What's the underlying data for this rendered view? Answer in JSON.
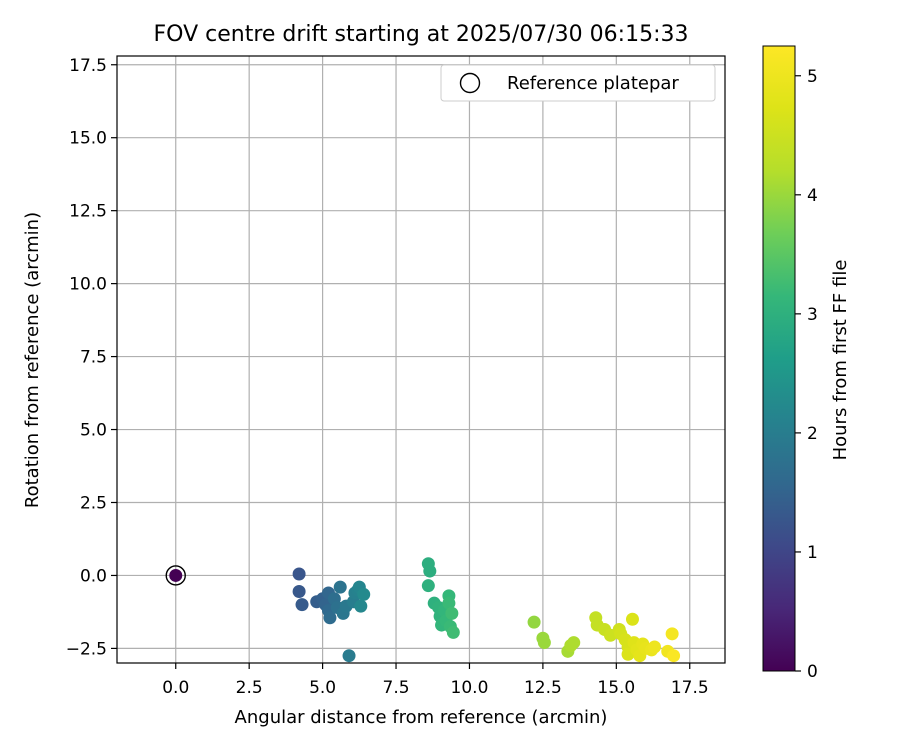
{
  "chart_data": {
    "type": "scatter",
    "title": "FOV centre drift starting at 2025/07/30 06:15:33",
    "xlabel": "Angular distance from reference (arcmin)",
    "ylabel": "Rotation from reference (arcmin)",
    "xlim": [
      -2.0,
      18.7
    ],
    "ylim": [
      -3.0,
      17.8
    ],
    "x_ticks": [
      0.0,
      2.5,
      5.0,
      7.5,
      10.0,
      12.5,
      15.0,
      17.5
    ],
    "x_tick_labels": [
      "0.0",
      "2.5",
      "5.0",
      "7.5",
      "10.0",
      "12.5",
      "15.0",
      "17.5"
    ],
    "y_ticks": [
      -2.5,
      0.0,
      2.5,
      5.0,
      7.5,
      10.0,
      12.5,
      15.0,
      17.5
    ],
    "y_tick_labels": [
      "−2.5",
      "0.0",
      "2.5",
      "5.0",
      "7.5",
      "10.0",
      "12.5",
      "15.0",
      "17.5"
    ],
    "grid": true,
    "legend": {
      "position": "top-right",
      "entries": [
        {
          "label": "Reference platepar",
          "marker": "open-circle"
        }
      ]
    },
    "colorbar": {
      "label": "Hours from first FF file",
      "range": [
        0,
        5.25
      ],
      "ticks": [
        0,
        1,
        2,
        3,
        4,
        5
      ],
      "tick_labels": [
        "0",
        "1",
        "2",
        "3",
        "4",
        "5"
      ],
      "colormap": "viridis"
    },
    "reference_point": {
      "x": 0.0,
      "y": 0.0
    },
    "series": [
      {
        "points": [
          {
            "x": 0.0,
            "y": 0.0,
            "h": 0.0
          },
          {
            "x": 4.2,
            "y": 0.05,
            "h": 1.25
          },
          {
            "x": 4.2,
            "y": -0.55,
            "h": 1.3
          },
          {
            "x": 4.3,
            "y": -1.0,
            "h": 1.35
          },
          {
            "x": 4.8,
            "y": -0.9,
            "h": 1.4
          },
          {
            "x": 5.0,
            "y": -0.8,
            "h": 1.45
          },
          {
            "x": 5.1,
            "y": -1.0,
            "h": 1.5
          },
          {
            "x": 5.2,
            "y": -0.6,
            "h": 1.55
          },
          {
            "x": 5.2,
            "y": -1.2,
            "h": 1.6
          },
          {
            "x": 5.25,
            "y": -1.45,
            "h": 1.65
          },
          {
            "x": 5.4,
            "y": -0.8,
            "h": 1.7
          },
          {
            "x": 5.5,
            "y": -1.1,
            "h": 1.75
          },
          {
            "x": 5.6,
            "y": -0.4,
            "h": 1.8
          },
          {
            "x": 5.7,
            "y": -1.3,
            "h": 1.85
          },
          {
            "x": 5.8,
            "y": -1.05,
            "h": 1.9
          },
          {
            "x": 5.9,
            "y": -2.75,
            "h": 1.95
          },
          {
            "x": 6.05,
            "y": -0.9,
            "h": 2.0
          },
          {
            "x": 6.1,
            "y": -0.6,
            "h": 2.05
          },
          {
            "x": 6.2,
            "y": -0.5,
            "h": 2.1
          },
          {
            "x": 6.25,
            "y": -0.4,
            "h": 2.15
          },
          {
            "x": 6.3,
            "y": -1.05,
            "h": 2.2
          },
          {
            "x": 6.4,
            "y": -0.65,
            "h": 2.25
          },
          {
            "x": 8.6,
            "y": 0.4,
            "h": 2.95
          },
          {
            "x": 8.65,
            "y": 0.15,
            "h": 2.95
          },
          {
            "x": 8.6,
            "y": -0.35,
            "h": 3.0
          },
          {
            "x": 8.8,
            "y": -0.95,
            "h": 3.0
          },
          {
            "x": 8.95,
            "y": -1.1,
            "h": 3.05
          },
          {
            "x": 9.0,
            "y": -1.4,
            "h": 3.05
          },
          {
            "x": 9.05,
            "y": -1.7,
            "h": 3.1
          },
          {
            "x": 9.15,
            "y": -1.2,
            "h": 3.1
          },
          {
            "x": 9.2,
            "y": -1.55,
            "h": 3.15
          },
          {
            "x": 9.3,
            "y": -0.7,
            "h": 3.15
          },
          {
            "x": 9.3,
            "y": -0.95,
            "h": 3.2
          },
          {
            "x": 9.35,
            "y": -1.75,
            "h": 3.2
          },
          {
            "x": 9.4,
            "y": -1.3,
            "h": 3.25
          },
          {
            "x": 9.45,
            "y": -1.95,
            "h": 3.25
          },
          {
            "x": 12.2,
            "y": -1.6,
            "h": 3.95
          },
          {
            "x": 12.5,
            "y": -2.15,
            "h": 4.0
          },
          {
            "x": 12.55,
            "y": -2.3,
            "h": 4.0
          },
          {
            "x": 13.35,
            "y": -2.6,
            "h": 4.1
          },
          {
            "x": 13.45,
            "y": -2.4,
            "h": 4.15
          },
          {
            "x": 13.55,
            "y": -2.3,
            "h": 4.15
          },
          {
            "x": 14.3,
            "y": -1.45,
            "h": 4.4
          },
          {
            "x": 14.35,
            "y": -1.7,
            "h": 4.4
          },
          {
            "x": 14.6,
            "y": -1.85,
            "h": 4.45
          },
          {
            "x": 14.8,
            "y": -2.05,
            "h": 4.5
          },
          {
            "x": 15.1,
            "y": -1.85,
            "h": 4.55
          },
          {
            "x": 15.15,
            "y": -2.0,
            "h": 4.6
          },
          {
            "x": 15.3,
            "y": -2.2,
            "h": 4.65
          },
          {
            "x": 15.4,
            "y": -2.45,
            "h": 4.65
          },
          {
            "x": 15.4,
            "y": -2.7,
            "h": 4.7
          },
          {
            "x": 15.55,
            "y": -1.5,
            "h": 4.7
          },
          {
            "x": 15.6,
            "y": -2.3,
            "h": 4.75
          },
          {
            "x": 15.7,
            "y": -2.55,
            "h": 4.8
          },
          {
            "x": 15.8,
            "y": -2.75,
            "h": 4.85
          },
          {
            "x": 15.9,
            "y": -2.35,
            "h": 4.85
          },
          {
            "x": 16.0,
            "y": -2.5,
            "h": 4.9
          },
          {
            "x": 16.2,
            "y": -2.55,
            "h": 4.95
          },
          {
            "x": 16.3,
            "y": -2.45,
            "h": 5.0
          },
          {
            "x": 16.75,
            "y": -2.6,
            "h": 5.05
          },
          {
            "x": 16.9,
            "y": -2.0,
            "h": 5.1
          },
          {
            "x": 16.95,
            "y": -2.75,
            "h": 5.2
          }
        ]
      }
    ]
  }
}
